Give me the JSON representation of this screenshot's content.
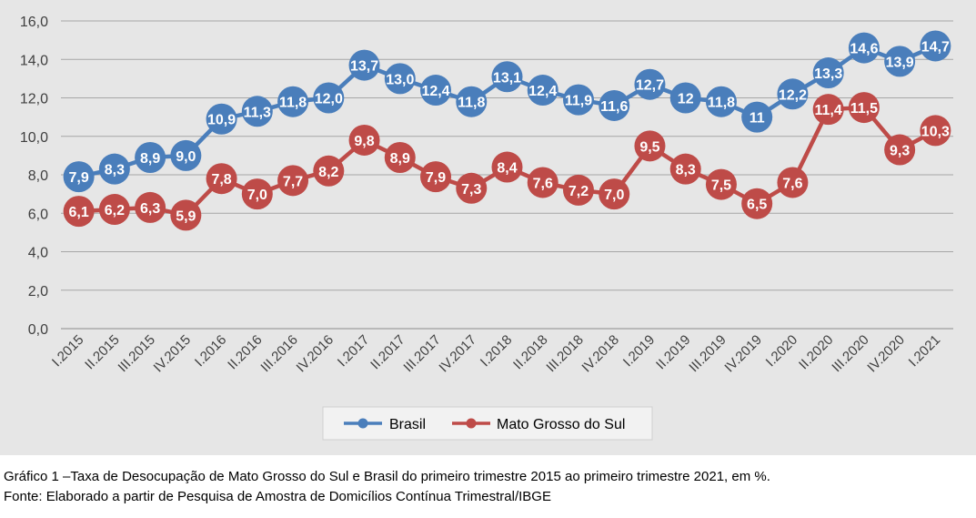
{
  "chart_data": {
    "type": "line",
    "categories": [
      "I.2015",
      "II.2015",
      "III.2015",
      "IV.2015",
      "I.2016",
      "II.2016",
      "III.2016",
      "IV.2016",
      "I.2017",
      "II.2017",
      "III.2017",
      "IV.2017",
      "I.2018",
      "II.2018",
      "III.2018",
      "IV.2018",
      "I.2019",
      "II.2019",
      "III.2019",
      "IV.2019",
      "I.2020",
      "II.2020",
      "III.2020",
      "IV.2020",
      "I.2021"
    ],
    "series": [
      {
        "name": "Brasil",
        "color": "#4A7EBB",
        "values": [
          7.9,
          8.3,
          8.9,
          9.0,
          10.9,
          11.3,
          11.8,
          12.0,
          13.7,
          13.0,
          12.4,
          11.8,
          13.1,
          12.4,
          11.9,
          11.6,
          12.7,
          12,
          11.8,
          11,
          12.2,
          13.3,
          14.6,
          13.9,
          14.7
        ],
        "labels": [
          "7,9",
          "8,3",
          "8,9",
          "9,0",
          "10,9",
          "11,3",
          "11,8",
          "12,0",
          "13,7",
          "13,0",
          "12,4",
          "11,8",
          "13,1",
          "12,4",
          "11,9",
          "11,6",
          "12,7",
          "12",
          "11,8",
          "11",
          "12,2",
          "13,3",
          "14,6",
          "13,9",
          "14,7"
        ]
      },
      {
        "name": "Mato Grosso do Sul",
        "color": "#BE4B48",
        "values": [
          6.1,
          6.2,
          6.3,
          5.9,
          7.8,
          7.0,
          7.7,
          8.2,
          9.8,
          8.9,
          7.9,
          7.3,
          8.4,
          7.6,
          7.2,
          7.0,
          9.5,
          8.3,
          7.5,
          6.5,
          7.6,
          11.4,
          11.5,
          9.3,
          10.3
        ],
        "labels": [
          "6,1",
          "6,2",
          "6,3",
          "5,9",
          "7,8",
          "7,0",
          "7,7",
          "8,2",
          "9,8",
          "8,9",
          "7,9",
          "7,3",
          "8,4",
          "7,6",
          "7,2",
          "7,0",
          "9,5",
          "8,3",
          "7,5",
          "6,5",
          "7,6",
          "11,4",
          "11,5",
          "9,3",
          "10,3"
        ]
      }
    ],
    "ylim": [
      0,
      16
    ],
    "yticks": [
      "0,0",
      "2,0",
      "4,0",
      "6,0",
      "8,0",
      "10,0",
      "12,0",
      "14,0",
      "16,0"
    ],
    "grid": true,
    "legend_position": "bottom",
    "background": "#E6E6E6"
  },
  "caption": {
    "title": "Gráfico 1 –Taxa de Desocupação de Mato Grosso do Sul e Brasil do primeiro trimestre 2015 ao primeiro trimestre 2021, em %.",
    "source": "Fonte: Elaborado a partir de Pesquisa de Amostra de Domicílios Contínua Trimestral/IBGE"
  }
}
